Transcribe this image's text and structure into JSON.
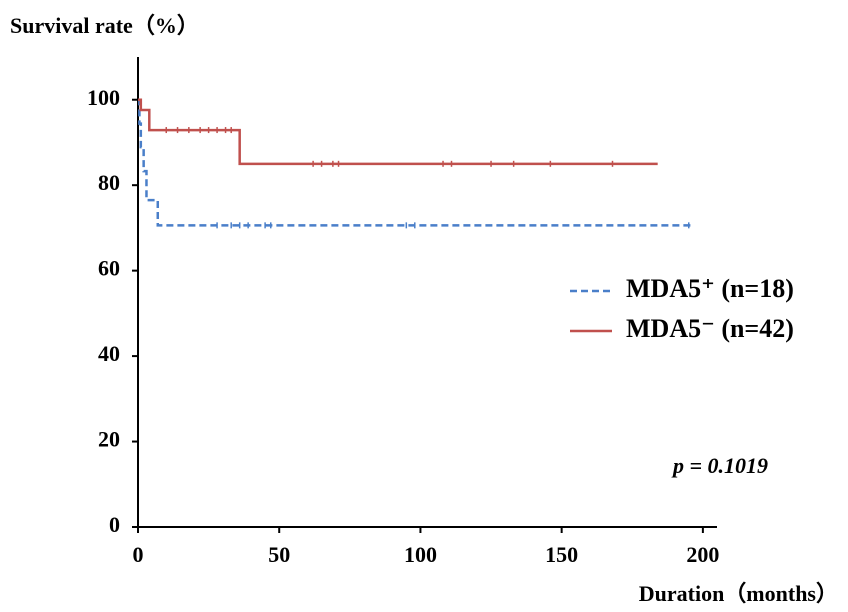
{
  "chart_data": {
    "type": "line",
    "step": true,
    "ylabel": "Survival rate（%）",
    "xlabel": "Duration（months）",
    "annotation": "p = 0.1019",
    "xlim": [
      0,
      205
    ],
    "ylim": [
      0,
      110
    ],
    "xticks": [
      0,
      50,
      100,
      150,
      200
    ],
    "yticks": [
      0,
      20,
      40,
      60,
      80,
      100
    ],
    "legend": "right",
    "series": [
      {
        "name": "MDA5⁺ (n=18)",
        "color": "#4a7fc9",
        "dash": true,
        "x": [
          0,
          0.5,
          1,
          2,
          3,
          7,
          196
        ],
        "values": [
          100,
          94.4,
          88.9,
          83.3,
          76.5,
          70.6,
          70.6
        ],
        "censored": {
          "x": [
            28,
            33,
            36,
            39,
            45,
            47,
            95,
            98,
            195
          ],
          "values": [
            70.6,
            70.6,
            70.6,
            70.6,
            70.6,
            70.6,
            70.6,
            70.6,
            70.6
          ]
        }
      },
      {
        "name": "MDA5⁻ (n=42)",
        "color": "#c0504d",
        "dash": false,
        "x": [
          0,
          1,
          4,
          36,
          184
        ],
        "values": [
          100,
          97.6,
          92.9,
          85.0,
          85.0
        ],
        "censored": {
          "x": [
            10,
            14,
            18,
            22,
            25,
            28,
            31,
            33,
            62,
            65,
            69,
            71,
            108,
            111,
            125,
            133,
            146,
            168
          ],
          "values": [
            92.9,
            92.9,
            92.9,
            92.9,
            92.9,
            92.9,
            92.9,
            92.9,
            85.0,
            85.0,
            85.0,
            85.0,
            85.0,
            85.0,
            85.0,
            85.0,
            85.0,
            85.0
          ]
        }
      }
    ]
  }
}
